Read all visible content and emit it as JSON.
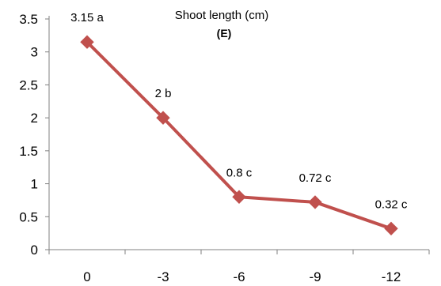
{
  "chart_data": {
    "type": "line",
    "title": "Shoot length (cm)",
    "subtitle": "(E)",
    "xlabel": "",
    "ylabel": "",
    "categories": [
      "0",
      "-3",
      "-6",
      "-9",
      "-12"
    ],
    "series": [
      {
        "values": [
          3.15,
          2,
          0.8,
          0.72,
          0.32
        ],
        "labels": [
          "3.15 a",
          "2 b",
          "0.8 c",
          "0.72 c",
          "0.32 c"
        ],
        "color": "#c0504d",
        "marker": "diamond"
      }
    ],
    "ylim": [
      0,
      3.5
    ],
    "yticks": [
      "0",
      "0.5",
      "1",
      "1.5",
      "2",
      "2.5",
      "3",
      "3.5"
    ],
    "grid": false,
    "legend": "none"
  }
}
